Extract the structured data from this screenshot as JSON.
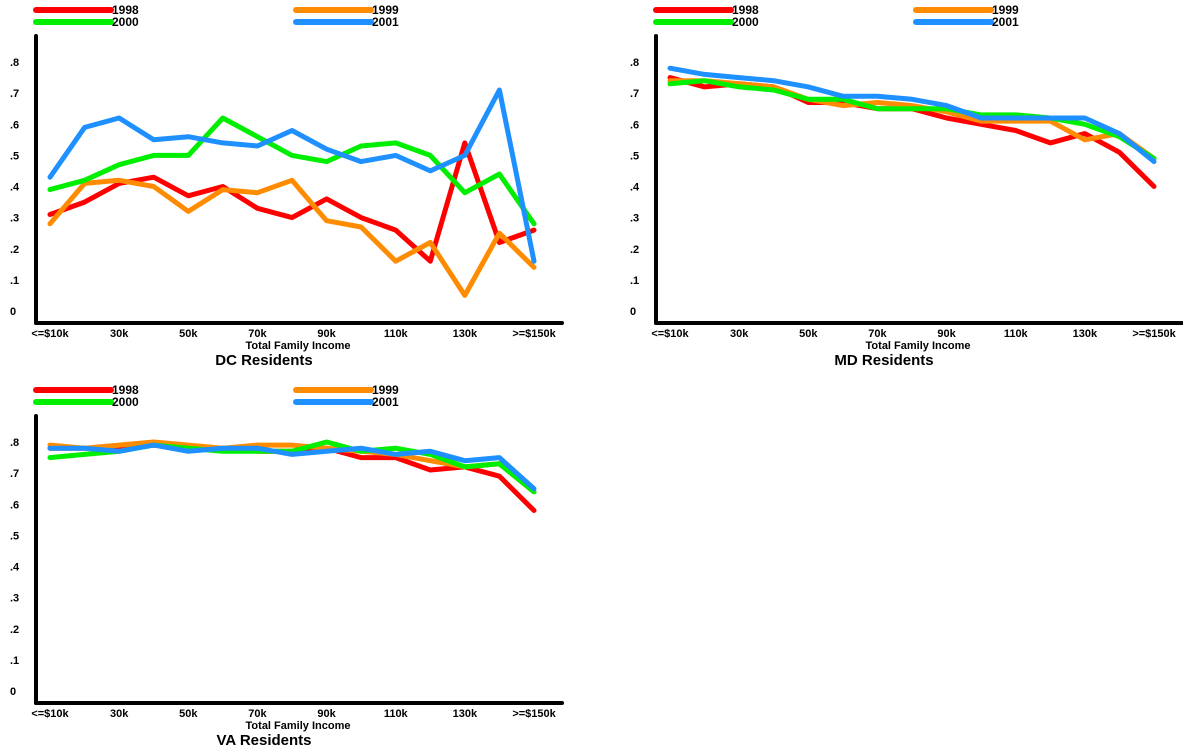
{
  "colors": {
    "1998": "#ff0000",
    "1999": "#ff8c00",
    "2000": "#00ee00",
    "2001": "#1e90ff",
    "axis": "#000000"
  },
  "chart_data": [
    {
      "type": "line",
      "title": "DC Residents",
      "xlabel": "Total Family Income",
      "ylabel": "",
      "ylim": [
        0,
        0.8
      ],
      "yticks": [
        "0",
        ".1",
        ".2",
        ".3",
        ".4",
        ".5",
        ".6",
        ".7",
        ".8"
      ],
      "x_tick_labels": [
        "<=$10k",
        "30k",
        "50k",
        "70k",
        "90k",
        "110k",
        "130k",
        ">=$150k"
      ],
      "legend": "top",
      "series": [
        {
          "name": "1998",
          "values": [
            0.31,
            0.35,
            0.41,
            0.43,
            0.37,
            0.4,
            0.33,
            0.3,
            0.36,
            0.3,
            0.26,
            0.16,
            0.54,
            0.22,
            0.26
          ]
        },
        {
          "name": "1999",
          "values": [
            0.28,
            0.41,
            0.42,
            0.4,
            0.32,
            0.39,
            0.38,
            0.42,
            0.29,
            0.27,
            0.16,
            0.22,
            0.05,
            0.25,
            0.14
          ]
        },
        {
          "name": "2000",
          "values": [
            0.39,
            0.42,
            0.47,
            0.5,
            0.5,
            0.62,
            0.56,
            0.5,
            0.48,
            0.53,
            0.54,
            0.5,
            0.38,
            0.44,
            0.28
          ]
        },
        {
          "name": "2001",
          "values": [
            0.43,
            0.59,
            0.62,
            0.55,
            0.56,
            0.54,
            0.53,
            0.58,
            0.52,
            0.48,
            0.5,
            0.45,
            0.5,
            0.71,
            0.16
          ]
        }
      ]
    },
    {
      "type": "line",
      "title": "MD Residents",
      "xlabel": "Total Family Income",
      "ylabel": "",
      "ylim": [
        0,
        0.8
      ],
      "yticks": [
        "0",
        ".1",
        ".2",
        ".3",
        ".4",
        ".5",
        ".6",
        ".7",
        ".8"
      ],
      "x_tick_labels": [
        "<=$10k",
        "30k",
        "50k",
        "70k",
        "90k",
        "110k",
        "130k",
        ">=$150k"
      ],
      "legend": "top",
      "series": [
        {
          "name": "1998",
          "values": [
            0.75,
            0.72,
            0.73,
            0.72,
            0.67,
            0.67,
            0.65,
            0.65,
            0.62,
            0.6,
            0.58,
            0.54,
            0.57,
            0.51,
            0.4
          ]
        },
        {
          "name": "1999",
          "values": [
            0.74,
            0.74,
            0.73,
            0.72,
            0.68,
            0.66,
            0.67,
            0.66,
            0.64,
            0.61,
            0.61,
            0.61,
            0.55,
            0.57,
            0.49
          ]
        },
        {
          "name": "2000",
          "values": [
            0.73,
            0.74,
            0.72,
            0.71,
            0.68,
            0.68,
            0.65,
            0.65,
            0.65,
            0.63,
            0.63,
            0.62,
            0.6,
            0.56,
            0.49
          ]
        },
        {
          "name": "2001",
          "values": [
            0.78,
            0.76,
            0.75,
            0.74,
            0.72,
            0.69,
            0.69,
            0.68,
            0.66,
            0.62,
            0.62,
            0.62,
            0.62,
            0.57,
            0.48
          ]
        }
      ]
    },
    {
      "type": "line",
      "title": "VA Residents",
      "xlabel": "Total Family Income",
      "ylabel": "",
      "ylim": [
        0,
        0.8
      ],
      "yticks": [
        "0",
        ".1",
        ".2",
        ".3",
        ".4",
        ".5",
        ".6",
        ".7",
        ".8"
      ],
      "x_tick_labels": [
        "<=$10k",
        "30k",
        "50k",
        "70k",
        "90k",
        "110k",
        "130k",
        ">=$150k"
      ],
      "legend": "top",
      "series": [
        {
          "name": "1998",
          "values": [
            0.78,
            0.78,
            0.78,
            0.79,
            0.78,
            0.78,
            0.77,
            0.77,
            0.78,
            0.75,
            0.75,
            0.71,
            0.72,
            0.69,
            0.58
          ]
        },
        {
          "name": "1999",
          "values": [
            0.79,
            0.78,
            0.79,
            0.8,
            0.79,
            0.78,
            0.79,
            0.79,
            0.78,
            0.77,
            0.76,
            0.74,
            0.72,
            0.73,
            0.64
          ]
        },
        {
          "name": "2000",
          "values": [
            0.75,
            0.76,
            0.77,
            0.79,
            0.78,
            0.77,
            0.77,
            0.77,
            0.8,
            0.77,
            0.78,
            0.76,
            0.72,
            0.73,
            0.64
          ]
        },
        {
          "name": "2001",
          "values": [
            0.78,
            0.78,
            0.77,
            0.79,
            0.77,
            0.78,
            0.78,
            0.76,
            0.77,
            0.78,
            0.76,
            0.77,
            0.74,
            0.75,
            0.65
          ]
        }
      ]
    }
  ]
}
